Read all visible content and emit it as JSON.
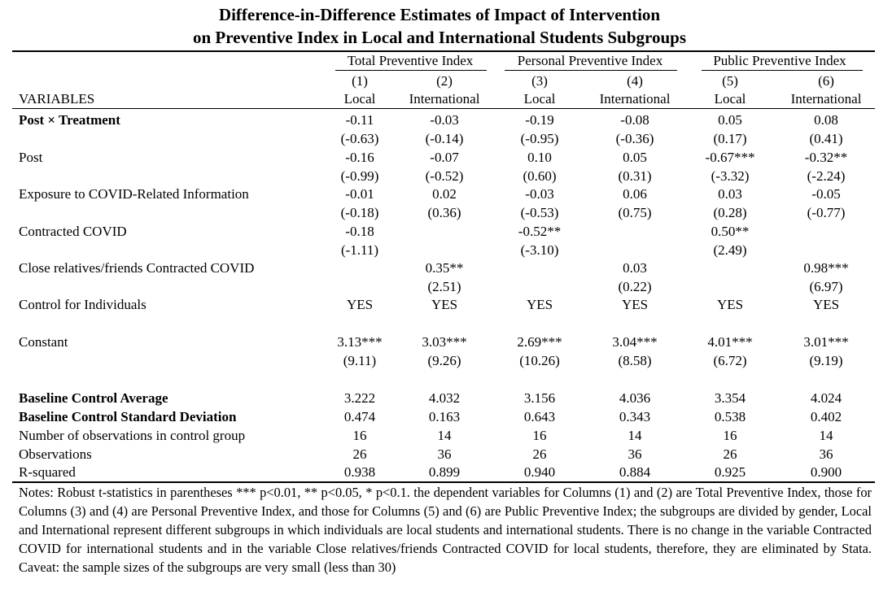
{
  "title_line1": "Difference-in-Difference Estimates of Impact of Intervention",
  "title_line2": "on Preventive Index in Local and International Students Subgroups",
  "groups": [
    "Total Preventive Index",
    "Personal Preventive Index",
    "Public Preventive Index"
  ],
  "col_numbers": [
    "(1)",
    "(2)",
    "(3)",
    "(4)",
    "(5)",
    "(6)"
  ],
  "col_names": [
    "Local",
    "International",
    "Local",
    "International",
    "Local",
    "International"
  ],
  "variables_header": "VARIABLES",
  "rows": [
    {
      "label": "Post × Treatment",
      "bold": true,
      "coef": [
        "-0.11",
        "-0.03",
        "-0.19",
        "-0.08",
        "0.05",
        "0.08"
      ],
      "tstat": [
        "(-0.63)",
        "(-0.14)",
        "(-0.95)",
        "(-0.36)",
        "(0.17)",
        "(0.41)"
      ]
    },
    {
      "label": "Post",
      "bold": false,
      "coef": [
        "-0.16",
        "-0.07",
        "0.10",
        "0.05",
        "-0.67***",
        "-0.32**"
      ],
      "tstat": [
        "(-0.99)",
        "(-0.52)",
        "(0.60)",
        "(0.31)",
        "(-3.32)",
        "(-2.24)"
      ]
    },
    {
      "label": "Exposure to COVID-Related Information",
      "bold": false,
      "coef": [
        "-0.01",
        "0.02",
        "-0.03",
        "0.06",
        "0.03",
        "-0.05"
      ],
      "tstat": [
        "(-0.18)",
        "(0.36)",
        "(-0.53)",
        "(0.75)",
        "(0.28)",
        "(-0.77)"
      ]
    },
    {
      "label": "Contracted COVID",
      "bold": false,
      "coef": [
        "-0.18",
        "",
        "-0.52**",
        "",
        "0.50**",
        ""
      ],
      "tstat": [
        "(-1.11)",
        "",
        "(-3.10)",
        "",
        "(2.49)",
        ""
      ]
    },
    {
      "label": "Close relatives/friends Contracted COVID",
      "bold": false,
      "coef": [
        "",
        "0.35**",
        "",
        "0.03",
        "",
        "0.98***"
      ],
      "tstat": [
        "",
        "(2.51)",
        "",
        "(0.22)",
        "",
        "(6.97)"
      ]
    },
    {
      "label": "Control for Individuals",
      "bold": false,
      "coef": [
        "YES",
        "YES",
        "YES",
        "YES",
        "YES",
        "YES"
      ],
      "tstat": [
        "",
        "",
        "",
        "",
        "",
        ""
      ]
    },
    {
      "label": "Constant",
      "bold": false,
      "coef": [
        "3.13***",
        "3.03***",
        "2.69***",
        "3.04***",
        "4.01***",
        "3.01***"
      ],
      "tstat": [
        "(9.11)",
        "(9.26)",
        "(10.26)",
        "(8.58)",
        "(6.72)",
        "(9.19)"
      ]
    }
  ],
  "stats": [
    {
      "label": "Baseline Control Average",
      "bold": true,
      "values": [
        "3.222",
        "4.032",
        "3.156",
        "4.036",
        "3.354",
        "4.024"
      ]
    },
    {
      "label": "Baseline Control Standard Deviation",
      "bold": true,
      "values": [
        "0.474",
        "0.163",
        "0.643",
        "0.343",
        "0.538",
        "0.402"
      ]
    },
    {
      "label": "Number of observations in control group",
      "bold": false,
      "values": [
        "16",
        "14",
        "16",
        "14",
        "16",
        "14"
      ]
    },
    {
      "label": "Observations",
      "bold": false,
      "values": [
        "26",
        "36",
        "26",
        "36",
        "26",
        "36"
      ]
    },
    {
      "label": "R-squared",
      "bold": false,
      "values": [
        "0.938",
        "0.899",
        "0.940",
        "0.884",
        "0.925",
        "0.900"
      ]
    }
  ],
  "notes": "Notes: Robust t-statistics in parentheses *** p<0.01, ** p<0.05, * p<0.1. the dependent variables for Columns (1) and (2) are Total Preventive Index, those for Columns (3) and (4) are Personal Preventive Index, and those for Columns (5) and (6) are Public Preventive Index; the subgroups are divided by gender, Local and International represent different subgroups in which individuals are local students and international students. There is no change in the variable Contracted COVID for international students and in the variable Close relatives/friends Contracted COVID for local students, therefore, they are eliminated by Stata. Caveat: the sample sizes of the subgroups are very small (less than 30)"
}
